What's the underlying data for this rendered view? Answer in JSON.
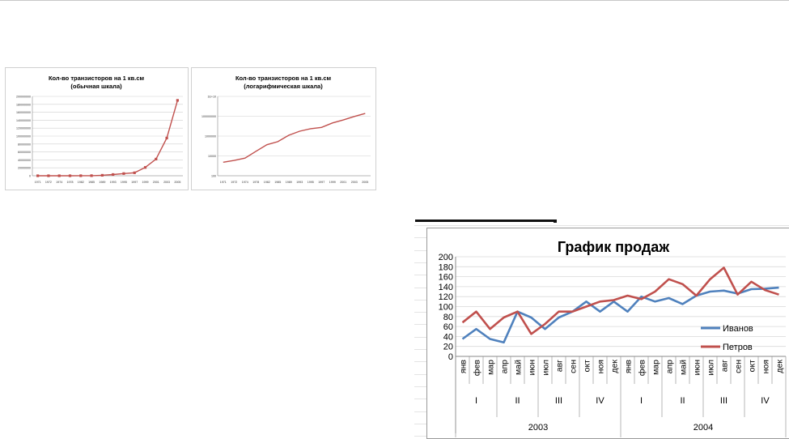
{
  "charts": [
    {
      "type": "line",
      "title_line1": "Кол-во транзисторов на 1 кв.см",
      "title_line2": "(обычная шкала)",
      "x": [
        "1971",
        "1972",
        "1974",
        "1978",
        "1982",
        "1985",
        "1989",
        "1993",
        "1995",
        "1997",
        "1999",
        "2001",
        "2003",
        "2005"
      ],
      "values": [
        2300,
        3500,
        6000,
        29000,
        134000,
        275000,
        1200000,
        3100000,
        5500000,
        7500000,
        21000000,
        42000000,
        95000000,
        190000000
      ],
      "y_ticks": [
        "0",
        "20000000",
        "40000000",
        "60000000",
        "80000000",
        "100000000",
        "120000000",
        "140000000",
        "160000000",
        "180000000",
        "200000000"
      ],
      "ylim": [
        0,
        200000000
      ],
      "scale": "linear",
      "color": "#c0504d",
      "marker": "square",
      "grid": true
    },
    {
      "type": "line",
      "title_line1": "Кол-во транзисторов на 1 кв.см",
      "title_line2": "(логарифмическая шкала)",
      "x": [
        "1971",
        "1972",
        "1974",
        "1978",
        "1982",
        "1985",
        "1989",
        "1993",
        "1995",
        "1997",
        "1999",
        "2001",
        "2003",
        "2005"
      ],
      "values": [
        2300,
        3500,
        6000,
        29000,
        134000,
        275000,
        1200000,
        3100000,
        5500000,
        7500000,
        21000000,
        42000000,
        95000000,
        190000000
      ],
      "y_ticks": [
        "100",
        "10000",
        "1000000",
        "100000000",
        "1E+10"
      ],
      "ylim": [
        100,
        10000000000
      ],
      "scale": "log",
      "color": "#c0504d",
      "marker": "none",
      "grid": true
    }
  ],
  "chart_data": {
    "type": "line",
    "title": "График продаж",
    "y_ticks": [
      "0",
      "20",
      "40",
      "60",
      "80",
      "100",
      "120",
      "140",
      "160",
      "180",
      "200"
    ],
    "ylim": [
      0,
      200
    ],
    "grid": true,
    "legend_position": "right",
    "months": [
      "янв",
      "фев",
      "мар",
      "апр",
      "май",
      "июн",
      "июл",
      "авг",
      "сен",
      "окт",
      "ноя",
      "дек",
      "янв",
      "фев",
      "мар",
      "апр",
      "май",
      "июн",
      "июл",
      "авг",
      "сен",
      "окт",
      "ноя",
      "дек"
    ],
    "quarters": [
      "I",
      "II",
      "III",
      "IV",
      "I",
      "II",
      "III",
      "IV"
    ],
    "years": [
      "2003",
      "2004"
    ],
    "series": [
      {
        "name": "Иванов",
        "color": "#4f81bd",
        "values": [
          35,
          55,
          35,
          28,
          90,
          78,
          55,
          78,
          90,
          110,
          90,
          110,
          90,
          120,
          110,
          117,
          105,
          122,
          130,
          132,
          126,
          135,
          136,
          138
        ]
      },
      {
        "name": "Петров",
        "color": "#c0504d",
        "values": [
          68,
          90,
          55,
          78,
          90,
          45,
          65,
          90,
          90,
          100,
          110,
          113,
          122,
          115,
          130,
          155,
          145,
          122,
          155,
          178,
          124,
          150,
          133,
          124
        ]
      }
    ]
  }
}
